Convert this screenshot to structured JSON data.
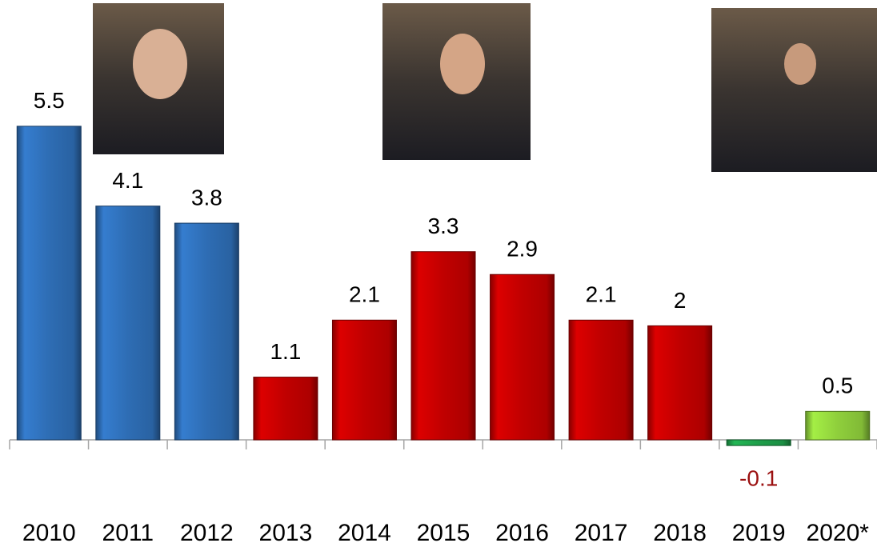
{
  "chart_data": {
    "type": "bar",
    "categories": [
      "2010",
      "2011",
      "2012",
      "2013",
      "2014",
      "2015",
      "2016",
      "2017",
      "2018",
      "2019",
      "2020*"
    ],
    "values": [
      5.5,
      4.1,
      3.8,
      1.1,
      2.1,
      3.3,
      2.9,
      2.1,
      2,
      -0.1,
      0.5
    ],
    "colors": [
      "#2e6db4",
      "#2e6db4",
      "#2e6db4",
      "#c00000",
      "#c00000",
      "#c00000",
      "#c00000",
      "#c00000",
      "#c00000",
      "#1e9e4a",
      "#8fcf3c"
    ],
    "negative_label_color": "#9b1010"
  }
}
